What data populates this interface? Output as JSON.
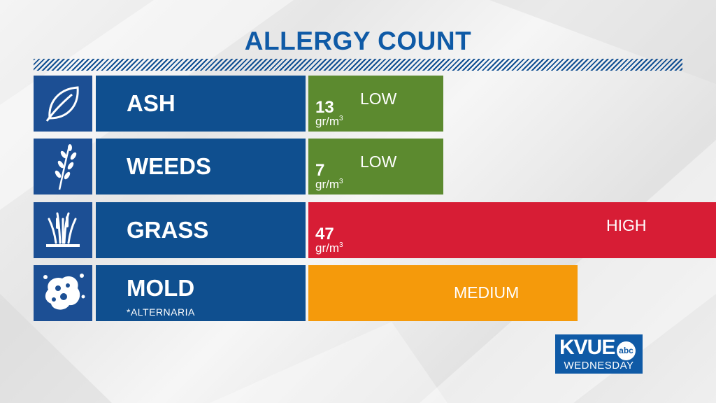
{
  "chart_data": {
    "type": "bar",
    "title": "ALLERGY COUNT",
    "categories": [
      "ASH",
      "WEEDS",
      "GRASS",
      "MOLD"
    ],
    "subtitles": [
      "",
      "",
      "",
      "*ALTERNARIA"
    ],
    "counts": [
      "13",
      "7",
      "47",
      ""
    ],
    "unit": "gr/m",
    "unit_superscript": "3",
    "levels": [
      "LOW",
      "LOW",
      "HIGH",
      "MEDIUM"
    ],
    "level_fraction": [
      0.33,
      0.33,
      1.0,
      0.66
    ],
    "colors": {
      "LOW": "#5c8a2f",
      "HIGH": "#d71d35",
      "MEDIUM": "#f59a0b",
      "title": "#0f5aa6",
      "category_box": "#0f4f8f",
      "icon_box": "#1c4f94"
    },
    "icons": [
      "leaf-icon",
      "weed-sprig-icon",
      "grass-tuft-icon",
      "mold-spore-icon"
    ]
  },
  "branding": {
    "logo_text": "KVUE",
    "network": "abc",
    "day": "WEDNESDAY"
  }
}
